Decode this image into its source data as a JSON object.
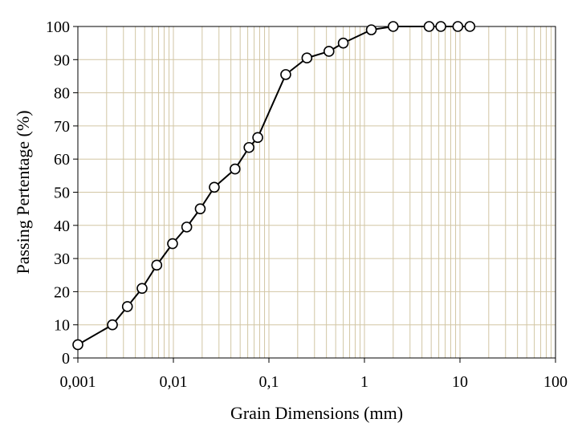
{
  "chart_data": {
    "type": "line",
    "title": "",
    "xlabel": "Grain Dimensions (mm)",
    "ylabel": "Passing Pertentage (%)",
    "x_scale": "log",
    "xlim": [
      0.001,
      100
    ],
    "ylim": [
      0,
      100
    ],
    "x_ticks": [
      "0,001",
      "0,01",
      "0,1",
      "1",
      "10",
      "100"
    ],
    "y_ticks": [
      "0",
      "10",
      "20",
      "30",
      "40",
      "50",
      "60",
      "70",
      "80",
      "90",
      "100"
    ],
    "grid": true,
    "legend": "none",
    "series": [
      {
        "marker": "open-circle",
        "color": "#000000",
        "x": [
          0.001,
          0.0023,
          0.0033,
          0.0047,
          0.0067,
          0.0098,
          0.0138,
          0.0191,
          0.0268,
          0.0442,
          0.0619,
          0.0764,
          0.15,
          0.25,
          0.425,
          0.6,
          1.18,
          2.0,
          4.75,
          6.3,
          9.5,
          12.7
        ],
        "y": [
          4,
          10,
          15.5,
          21,
          28,
          34.5,
          39.5,
          45,
          51.5,
          57,
          63.5,
          66.5,
          85.5,
          90.5,
          92.5,
          95,
          99,
          100,
          100,
          100,
          100,
          100
        ]
      }
    ],
    "colors": {
      "grid": "#d2c6a4",
      "line": "#000000",
      "marker_fill": "#ffffff"
    }
  }
}
